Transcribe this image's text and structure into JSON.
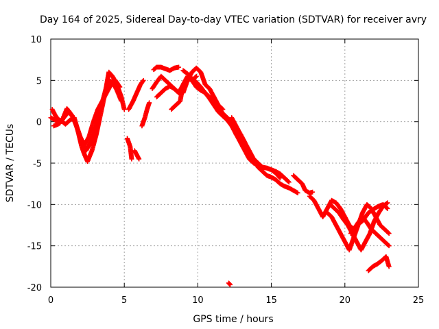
{
  "chart_data": {
    "type": "scatter",
    "title": "Day 164 of 2025, Sidereal Day-to-day VTEC variation (SDTVAR) for receiver avry",
    "xlabel": "GPS time / hours",
    "ylabel": "SDTVAR / TECUs",
    "xlim": [
      0,
      25
    ],
    "ylim": [
      -20,
      10
    ],
    "xticks": [
      "0",
      "5",
      "10",
      "15",
      "20",
      "25"
    ],
    "yticks": [
      "10",
      "5",
      "0",
      "-5",
      "-10",
      "-15",
      "-20"
    ],
    "grid": true,
    "marker": "plus",
    "series": [
      {
        "name": "SDTVAR",
        "color": "#ff0000",
        "tracks": [
          {
            "x": [
              0.1,
              0.3,
              0.5,
              0.8,
              1.0,
              1.3,
              1.6,
              1.9,
              2.1,
              2.3,
              2.5,
              2.8,
              3.1,
              3.4,
              3.7,
              3.95,
              4.2,
              4.5,
              4.8,
              5.0
            ],
            "y": [
              1.5,
              0.8,
              0.3,
              0.0,
              -0.3,
              0.2,
              0.5,
              -1.5,
              -3.0,
              -4.0,
              -4.8,
              -3.5,
              -1.5,
              1.0,
              3.5,
              6.0,
              5.5,
              4.5,
              3.0,
              1.5
            ]
          },
          {
            "x": [
              0.0,
              0.3,
              0.6,
              0.9,
              1.2,
              1.5,
              1.8,
              2.1,
              2.4,
              2.7,
              3.0,
              3.3,
              3.6,
              3.9,
              4.2,
              4.5,
              4.8
            ],
            "y": [
              0.5,
              0.2,
              -0.2,
              0.5,
              1.2,
              0.6,
              -0.8,
              -2.3,
              -3.5,
              -2.5,
              -1.0,
              1.0,
              3.0,
              5.0,
              4.8,
              3.8,
              2.5
            ]
          },
          {
            "x": [
              0.2,
              0.5,
              0.8,
              1.1,
              1.4,
              1.7,
              2.0,
              2.3,
              2.6,
              2.9,
              3.2,
              3.5,
              3.8,
              4.1,
              4.4,
              4.7
            ],
            "y": [
              -0.5,
              -0.3,
              0.3,
              1.6,
              0.9,
              -0.2,
              -1.8,
              -2.8,
              -1.8,
              0.0,
              1.5,
              2.5,
              3.5,
              4.5,
              5.0,
              4.2
            ]
          },
          {
            "x": [
              5.7,
              5.85,
              6.0
            ],
            "y": [
              -3.5,
              -4.0,
              -4.5
            ]
          },
          {
            "x": [
              5.2,
              5.4,
              5.5
            ],
            "y": [
              -2.0,
              -3.0,
              -4.5
            ]
          },
          {
            "x": [
              5.3,
              5.6,
              5.85,
              6.1,
              6.3
            ],
            "y": [
              1.5,
              2.5,
              3.5,
              4.5,
              5.0
            ]
          },
          {
            "x": [
              6.2,
              6.4,
              6.55,
              6.7
            ],
            "y": [
              -0.5,
              0.5,
              1.5,
              2.3
            ]
          },
          {
            "x": [
              7.0,
              7.2,
              7.5,
              7.8,
              8.1,
              8.4,
              8.7
            ],
            "y": [
              6.3,
              6.6,
              6.6,
              6.4,
              6.2,
              6.5,
              6.6
            ]
          },
          {
            "x": [
              6.9,
              7.2,
              7.5,
              7.8,
              8.1,
              8.4,
              8.7,
              9.0,
              9.3,
              9.6,
              9.9
            ],
            "y": [
              4.0,
              4.8,
              5.5,
              5.0,
              4.5,
              4.0,
              3.5,
              4.5,
              5.3,
              5.0,
              5.5
            ]
          },
          {
            "x": [
              7.2,
              7.5,
              7.8,
              8.1,
              8.4,
              8.7,
              9.0,
              9.3,
              9.6,
              9.9,
              10.2,
              10.5,
              10.8,
              11.1,
              11.4,
              11.7
            ],
            "y": [
              3.0,
              3.5,
              4.0,
              4.3,
              4.0,
              3.5,
              3.5,
              5.0,
              6.0,
              6.5,
              6.0,
              4.5,
              4.0,
              3.0,
              2.0,
              1.5
            ]
          },
          {
            "x": [
              8.2,
              8.5,
              8.8,
              9.0,
              9.3,
              9.6,
              9.9,
              10.2,
              10.5,
              10.8,
              11.1,
              11.4,
              11.7,
              12.0,
              12.3,
              12.6,
              12.9,
              13.2
            ],
            "y": [
              1.5,
              2.0,
              2.5,
              4.5,
              5.5,
              5.0,
              4.2,
              3.8,
              3.5,
              3.0,
              2.5,
              1.8,
              1.0,
              0.5,
              0.0,
              -0.8,
              -1.5,
              -2.5
            ]
          },
          {
            "x": [
              9.0,
              9.3,
              9.6,
              9.9,
              10.2,
              10.5,
              10.8,
              11.1,
              11.4,
              11.7,
              12.0,
              12.3,
              12.6,
              12.9,
              13.2,
              13.5,
              13.8,
              14.1,
              14.4,
              14.7,
              15.0,
              15.3,
              15.6
            ],
            "y": [
              6.2,
              5.8,
              5.2,
              4.8,
              4.2,
              3.5,
              2.8,
              2.0,
              1.2,
              0.7,
              0.2,
              -0.5,
              -1.5,
              -2.2,
              -3.0,
              -3.8,
              -4.5,
              -5.0,
              -5.5,
              -5.6,
              -5.8,
              -6.2,
              -6.8
            ]
          },
          {
            "x": [
              12.3,
              12.6,
              12.9,
              13.2,
              13.5,
              13.8,
              14.1,
              14.4,
              14.7,
              15.0,
              15.3,
              15.6,
              15.9,
              16.2,
              16.5,
              16.8
            ],
            "y": [
              0.5,
              -0.5,
              -1.5,
              -2.5,
              -3.5,
              -4.5,
              -5.5,
              -6.0,
              -6.5,
              -6.7,
              -7.0,
              -7.5,
              -7.8,
              -8.0,
              -8.3,
              -8.6
            ]
          },
          {
            "x": [
              12.6,
              12.9,
              13.2,
              13.5,
              13.8,
              14.1,
              14.4,
              14.7,
              15.0,
              15.3,
              15.6,
              15.9,
              16.2
            ],
            "y": [
              -1.5,
              -2.5,
              -3.5,
              -4.5,
              -5.0,
              -5.3,
              -5.5,
              -5.6,
              -5.8,
              -6.0,
              -6.3,
              -6.8,
              -7.3
            ]
          },
          {
            "x": [
              16.5,
              16.8,
              17.1,
              17.3,
              17.6,
              17.8
            ],
            "y": [
              -6.5,
              -7.0,
              -7.5,
              -8.3,
              -8.6,
              -8.5
            ]
          },
          {
            "x": [
              17.6,
              17.9,
              18.2,
              18.5,
              18.8,
              19.1,
              19.4,
              19.7,
              20.0,
              20.3,
              20.6,
              20.9,
              21.2,
              21.5,
              21.8,
              22.1,
              22.4,
              22.7,
              23.0
            ],
            "y": [
              -9.0,
              -9.5,
              -10.5,
              -11.5,
              -10.5,
              -9.5,
              -9.8,
              -10.5,
              -11.5,
              -12.5,
              -13.0,
              -12.2,
              -11.5,
              -12.2,
              -13.0,
              -13.5,
              -14.0,
              -14.5,
              -15.0
            ]
          },
          {
            "x": [
              18.8,
              19.1,
              19.4,
              19.7,
              20.0,
              20.3,
              20.6,
              20.9,
              21.2,
              21.5,
              21.8,
              22.1,
              22.4,
              22.7,
              23.0
            ],
            "y": [
              -11.0,
              -11.5,
              -12.5,
              -13.5,
              -14.5,
              -15.5,
              -14.0,
              -12.5,
              -11.0,
              -10.0,
              -10.5,
              -11.5,
              -12.5,
              -13.0,
              -13.5
            ]
          },
          {
            "x": [
              19.0,
              19.3,
              19.6,
              19.9,
              20.2,
              20.5,
              20.8,
              21.1,
              21.4,
              21.7,
              22.0,
              22.3,
              22.6,
              22.9
            ],
            "y": [
              -10.0,
              -10.5,
              -11.0,
              -11.8,
              -12.5,
              -13.5,
              -14.5,
              -15.5,
              -14.5,
              -13.5,
              -12.0,
              -11.0,
              -10.2,
              -9.8
            ]
          },
          {
            "x": [
              20.4,
              20.8,
              21.2,
              21.6,
              22.0,
              22.3,
              22.6,
              22.9
            ],
            "y": [
              -13.5,
              -12.5,
              -12.0,
              -11.0,
              -10.5,
              -10.2,
              -10.0,
              -10.5
            ]
          },
          {
            "x": [
              21.6,
              21.9,
              22.2,
              22.5,
              22.8,
              23.0
            ],
            "y": [
              -18.0,
              -17.5,
              -17.2,
              -16.8,
              -16.3,
              -17.5
            ]
          },
          {
            "x": [
              12.1,
              12.2
            ],
            "y": [
              -19.5,
              -19.7
            ]
          }
        ]
      }
    ]
  }
}
